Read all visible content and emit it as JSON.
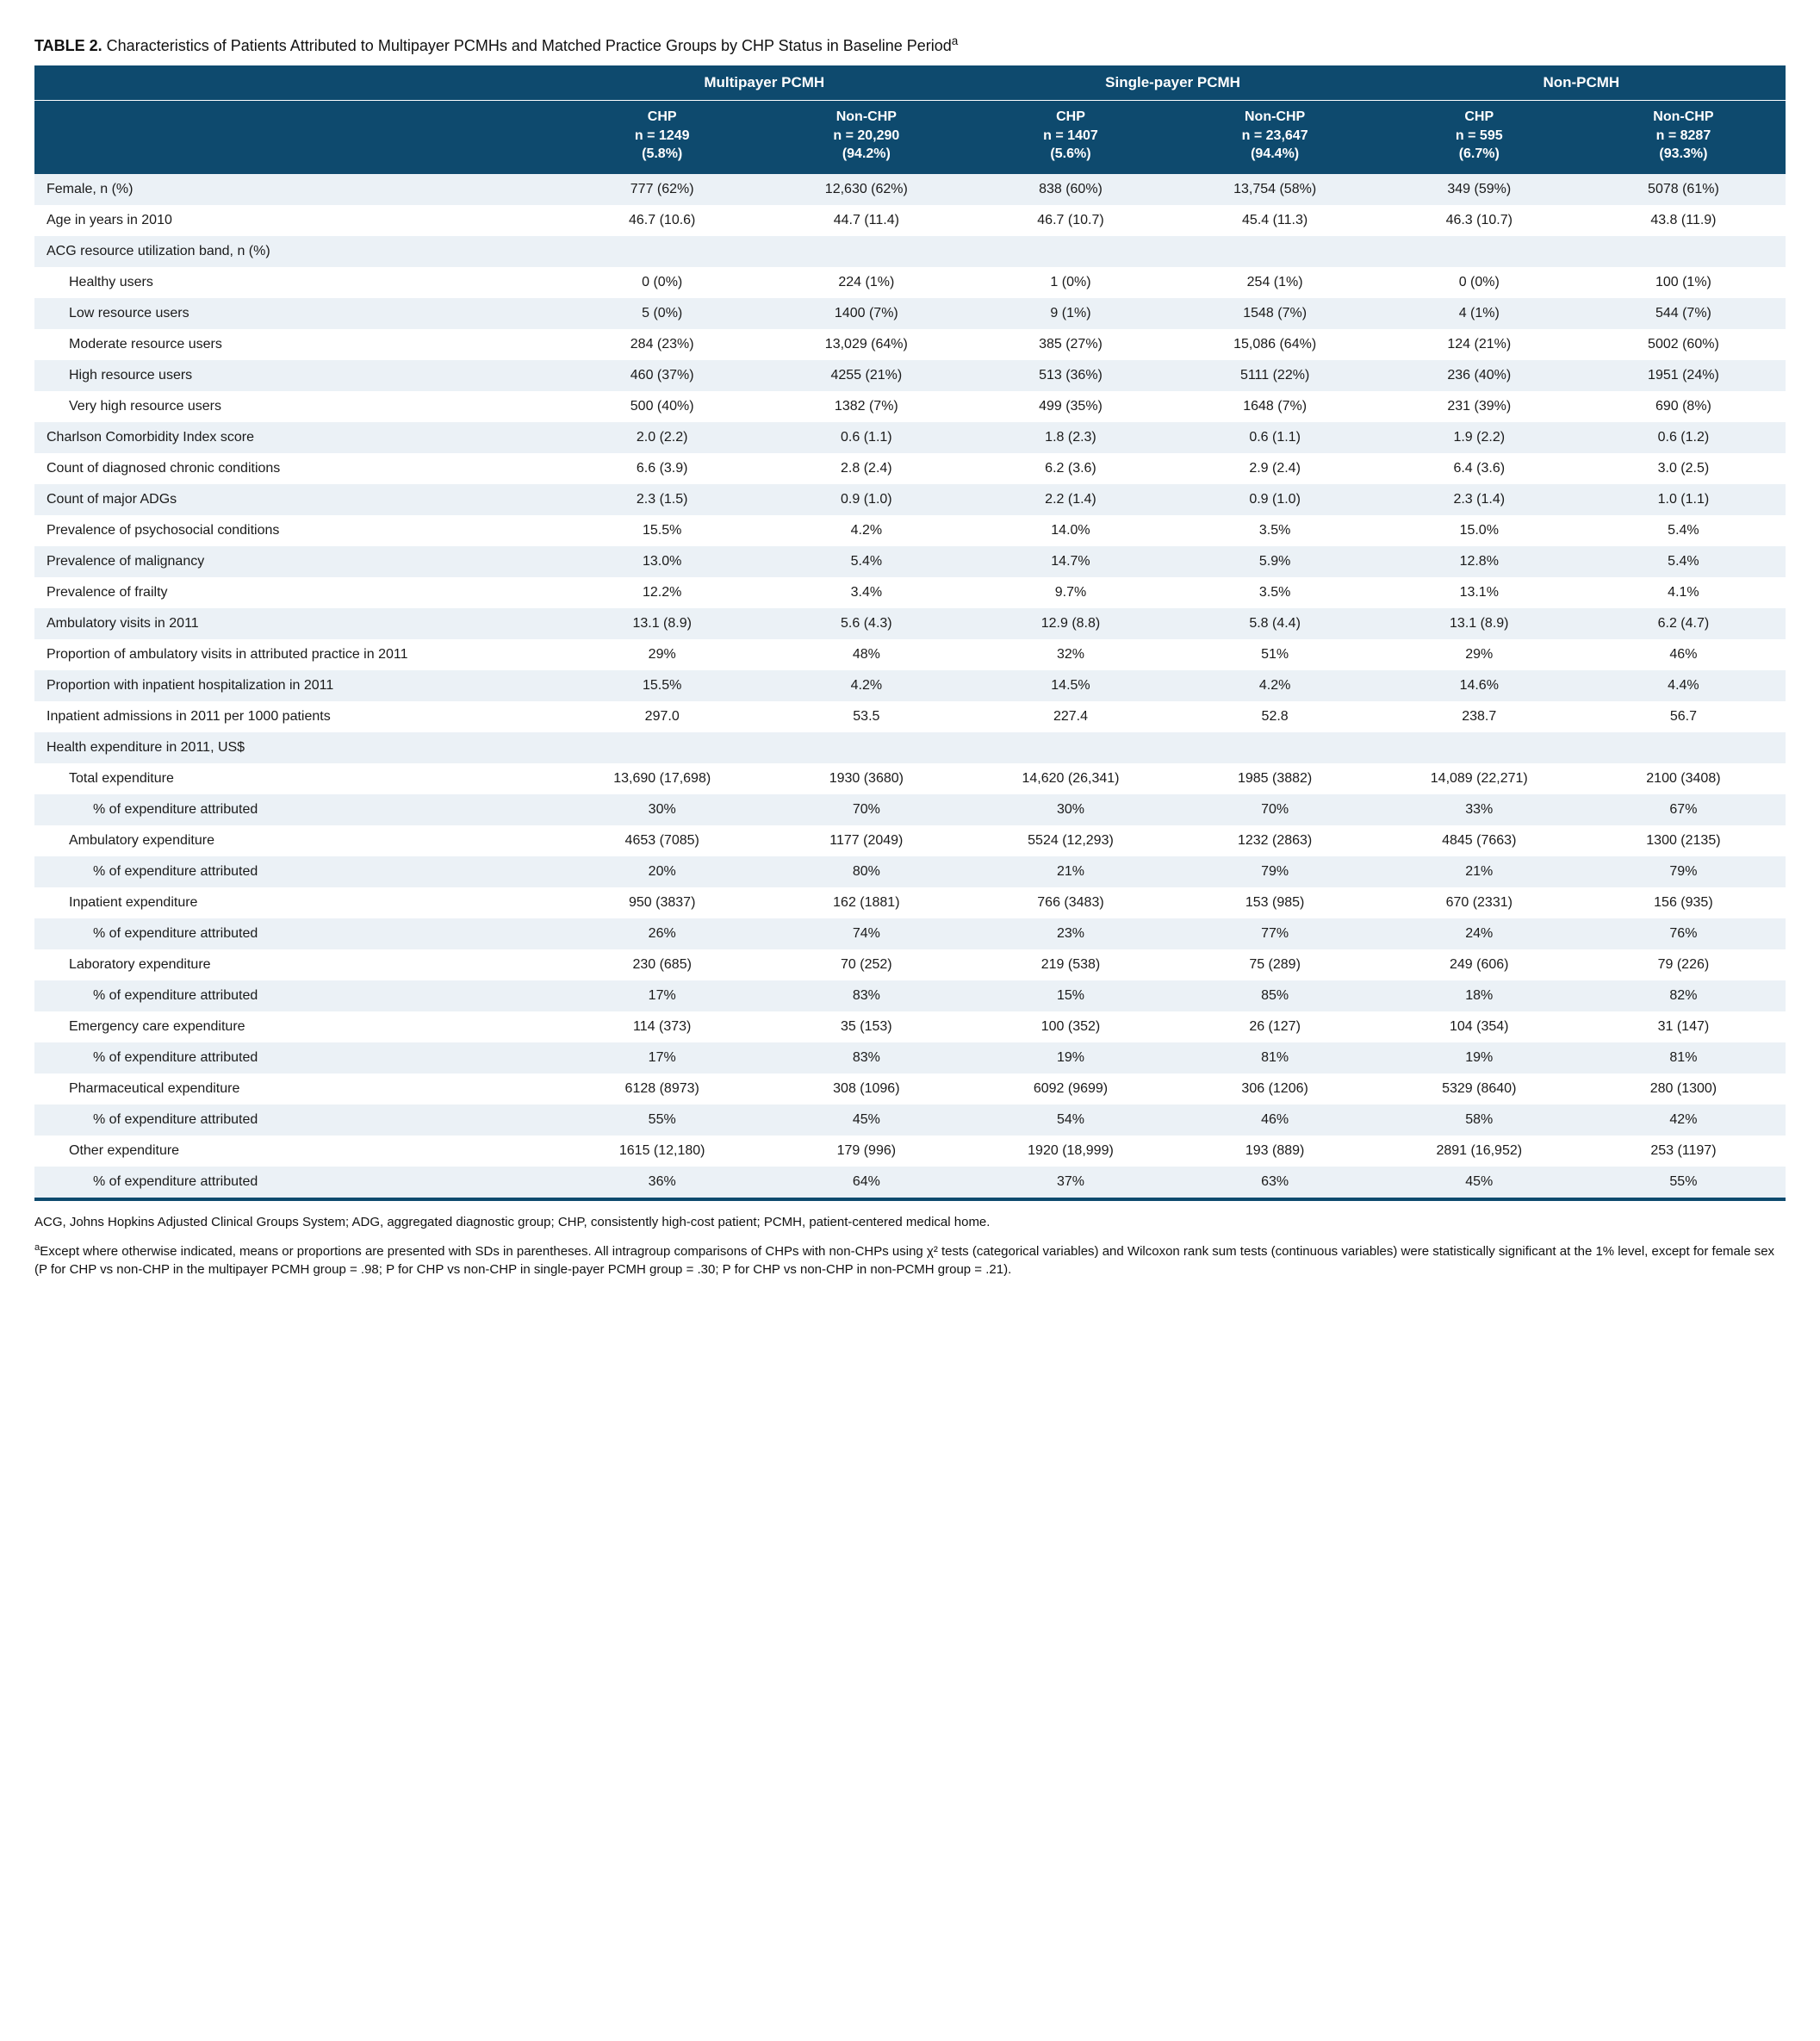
{
  "title_prefix": "TABLE 2.",
  "title_rest": " Characteristics of Patients Attributed to Multipayer PCMHs and Matched Practice Groups by CHP Status in Baseline Period",
  "title_sup": "a",
  "groups": [
    "Multipayer PCMH",
    "Single-payer PCMH",
    "Non-PCMH"
  ],
  "subheaders": [
    {
      "l1": "CHP",
      "l2": "n = 1249",
      "l3": "(5.8%)"
    },
    {
      "l1": "Non-CHP",
      "l2": "n = 20,290",
      "l3": "(94.2%)"
    },
    {
      "l1": "CHP",
      "l2": "n = 1407",
      "l3": "(5.6%)"
    },
    {
      "l1": "Non-CHP",
      "l2": "n = 23,647",
      "l3": "(94.4%)"
    },
    {
      "l1": "CHP",
      "l2": "n = 595",
      "l3": "(6.7%)"
    },
    {
      "l1": "Non-CHP",
      "l2": "n = 8287",
      "l3": "(93.3%)"
    }
  ],
  "rows": [
    {
      "label": "Female, n (%)",
      "indent": 0,
      "stripe": "light",
      "vals": [
        "777 (62%)",
        "12,630 (62%)",
        "838 (60%)",
        "13,754 (58%)",
        "349 (59%)",
        "5078 (61%)"
      ]
    },
    {
      "label": "Age in years in 2010",
      "indent": 0,
      "stripe": "white",
      "vals": [
        "46.7 (10.6)",
        "44.7 (11.4)",
        "46.7 (10.7)",
        "45.4 (11.3)",
        "46.3 (10.7)",
        "43.8 (11.9)"
      ]
    },
    {
      "label": "ACG resource utilization band, n (%)",
      "indent": 0,
      "stripe": "light",
      "vals": [
        "",
        "",
        "",
        "",
        "",
        ""
      ]
    },
    {
      "label": "Healthy users",
      "indent": 1,
      "stripe": "white",
      "vals": [
        "0 (0%)",
        "224 (1%)",
        "1 (0%)",
        "254 (1%)",
        "0 (0%)",
        "100 (1%)"
      ]
    },
    {
      "label": "Low resource users",
      "indent": 1,
      "stripe": "light",
      "vals": [
        "5 (0%)",
        "1400 (7%)",
        "9 (1%)",
        "1548 (7%)",
        "4 (1%)",
        "544 (7%)"
      ]
    },
    {
      "label": "Moderate resource users",
      "indent": 1,
      "stripe": "white",
      "vals": [
        "284 (23%)",
        "13,029 (64%)",
        "385 (27%)",
        "15,086 (64%)",
        "124 (21%)",
        "5002 (60%)"
      ]
    },
    {
      "label": "High resource users",
      "indent": 1,
      "stripe": "light",
      "vals": [
        "460 (37%)",
        "4255 (21%)",
        "513 (36%)",
        "5111 (22%)",
        "236 (40%)",
        "1951 (24%)"
      ]
    },
    {
      "label": "Very high resource users",
      "indent": 1,
      "stripe": "white",
      "vals": [
        "500 (40%)",
        "1382 (7%)",
        "499 (35%)",
        "1648 (7%)",
        "231 (39%)",
        "690 (8%)"
      ]
    },
    {
      "label": "Charlson Comorbidity Index score",
      "indent": 0,
      "stripe": "light",
      "vals": [
        "2.0 (2.2)",
        "0.6 (1.1)",
        "1.8 (2.3)",
        "0.6 (1.1)",
        "1.9 (2.2)",
        "0.6 (1.2)"
      ]
    },
    {
      "label": "Count of diagnosed chronic conditions",
      "indent": 0,
      "stripe": "white",
      "vals": [
        "6.6 (3.9)",
        "2.8 (2.4)",
        "6.2 (3.6)",
        "2.9 (2.4)",
        "6.4 (3.6)",
        "3.0 (2.5)"
      ]
    },
    {
      "label": "Count of major ADGs",
      "indent": 0,
      "stripe": "light",
      "vals": [
        "2.3 (1.5)",
        "0.9 (1.0)",
        "2.2 (1.4)",
        "0.9 (1.0)",
        "2.3 (1.4)",
        "1.0 (1.1)"
      ]
    },
    {
      "label": "Prevalence of psychosocial conditions",
      "indent": 0,
      "stripe": "white",
      "vals": [
        "15.5%",
        "4.2%",
        "14.0%",
        "3.5%",
        "15.0%",
        "5.4%"
      ]
    },
    {
      "label": "Prevalence of malignancy",
      "indent": 0,
      "stripe": "light",
      "vals": [
        "13.0%",
        "5.4%",
        "14.7%",
        "5.9%",
        "12.8%",
        "5.4%"
      ]
    },
    {
      "label": "Prevalence of frailty",
      "indent": 0,
      "stripe": "white",
      "vals": [
        "12.2%",
        "3.4%",
        "9.7%",
        "3.5%",
        "13.1%",
        "4.1%"
      ]
    },
    {
      "label": "Ambulatory visits in 2011",
      "indent": 0,
      "stripe": "light",
      "vals": [
        "13.1 (8.9)",
        "5.6 (4.3)",
        "12.9 (8.8)",
        "5.8 (4.4)",
        "13.1 (8.9)",
        "6.2 (4.7)"
      ]
    },
    {
      "label": "Proportion of ambulatory visits in attributed practice in 2011",
      "indent": 0,
      "stripe": "white",
      "vals": [
        "29%",
        "48%",
        "32%",
        "51%",
        "29%",
        "46%"
      ]
    },
    {
      "label": "Proportion with inpatient hospitalization in 2011",
      "indent": 0,
      "stripe": "light",
      "vals": [
        "15.5%",
        "4.2%",
        "14.5%",
        "4.2%",
        "14.6%",
        "4.4%"
      ]
    },
    {
      "label": "Inpatient admissions in 2011 per 1000 patients",
      "indent": 0,
      "stripe": "white",
      "vals": [
        "297.0",
        "53.5",
        "227.4",
        "52.8",
        "238.7",
        "56.7"
      ]
    },
    {
      "label": "Health expenditure in 2011, US$",
      "indent": 0,
      "stripe": "light",
      "vals": [
        "",
        "",
        "",
        "",
        "",
        ""
      ]
    },
    {
      "label": "Total expenditure",
      "indent": 1,
      "stripe": "white",
      "vals": [
        "13,690 (17,698)",
        "1930 (3680)",
        "14,620 (26,341)",
        "1985 (3882)",
        "14,089 (22,271)",
        "2100 (3408)"
      ]
    },
    {
      "label": "% of expenditure attributed",
      "indent": 2,
      "stripe": "light",
      "vals": [
        "30%",
        "70%",
        "30%",
        "70%",
        "33%",
        "67%"
      ]
    },
    {
      "label": "Ambulatory expenditure",
      "indent": 1,
      "stripe": "white",
      "vals": [
        "4653 (7085)",
        "1177 (2049)",
        "5524 (12,293)",
        "1232 (2863)",
        "4845 (7663)",
        "1300 (2135)"
      ]
    },
    {
      "label": "% of expenditure attributed",
      "indent": 2,
      "stripe": "light",
      "vals": [
        "20%",
        "80%",
        "21%",
        "79%",
        "21%",
        "79%"
      ]
    },
    {
      "label": "Inpatient expenditure",
      "indent": 1,
      "stripe": "white",
      "vals": [
        "950 (3837)",
        "162 (1881)",
        "766 (3483)",
        "153 (985)",
        "670 (2331)",
        "156 (935)"
      ]
    },
    {
      "label": "% of expenditure attributed",
      "indent": 2,
      "stripe": "light",
      "vals": [
        "26%",
        "74%",
        "23%",
        "77%",
        "24%",
        "76%"
      ]
    },
    {
      "label": "Laboratory expenditure",
      "indent": 1,
      "stripe": "white",
      "vals": [
        "230 (685)",
        "70 (252)",
        "219 (538)",
        "75 (289)",
        "249 (606)",
        "79 (226)"
      ]
    },
    {
      "label": "% of expenditure attributed",
      "indent": 2,
      "stripe": "light",
      "vals": [
        "17%",
        "83%",
        "15%",
        "85%",
        "18%",
        "82%"
      ]
    },
    {
      "label": "Emergency care expenditure",
      "indent": 1,
      "stripe": "white",
      "vals": [
        "114 (373)",
        "35 (153)",
        "100 (352)",
        "26 (127)",
        "104 (354)",
        "31 (147)"
      ]
    },
    {
      "label": "% of expenditure attributed",
      "indent": 2,
      "stripe": "light",
      "vals": [
        "17%",
        "83%",
        "19%",
        "81%",
        "19%",
        "81%"
      ]
    },
    {
      "label": "Pharmaceutical expenditure",
      "indent": 1,
      "stripe": "white",
      "vals": [
        "6128 (8973)",
        "308 (1096)",
        "6092 (9699)",
        "306 (1206)",
        "5329 (8640)",
        "280 (1300)"
      ]
    },
    {
      "label": "% of expenditure attributed",
      "indent": 2,
      "stripe": "light",
      "vals": [
        "55%",
        "45%",
        "54%",
        "46%",
        "58%",
        "42%"
      ]
    },
    {
      "label": "Other expenditure",
      "indent": 1,
      "stripe": "white",
      "vals": [
        "1615 (12,180)",
        "179 (996)",
        "1920 (18,999)",
        "193 (889)",
        "2891 (16,952)",
        "253 (1197)"
      ]
    },
    {
      "label": "% of expenditure attributed",
      "indent": 2,
      "stripe": "light",
      "vals": [
        "36%",
        "64%",
        "37%",
        "63%",
        "45%",
        "55%"
      ],
      "bottom": true
    }
  ],
  "footnote1": "ACG, Johns Hopkins Adjusted Clinical Groups System; ADG, aggregated diagnostic group; CHP, consistently high-cost patient; PCMH, patient-centered medical home.",
  "footnote2_sup": "a",
  "footnote2": "Except where otherwise indicated, means or proportions are presented with SDs in parentheses. All intragroup comparisons of CHPs with non-CHPs using χ² tests (categorical variables) and Wilcoxon rank sum tests (continuous variables) were statistically significant at the 1% level, except for female sex (P for CHP vs non-CHP in the multipayer PCMH group = .98; P for CHP vs non-CHP in single-payer PCMH group = .30; P for CHP vs non-CHP in non-PCMH group = .21).",
  "colors": {
    "header_bg": "#0e4a6e",
    "header_text": "#ffffff",
    "stripe_light": "#ebf1f6",
    "stripe_white": "#ffffff",
    "text": "#1a1a1a"
  }
}
